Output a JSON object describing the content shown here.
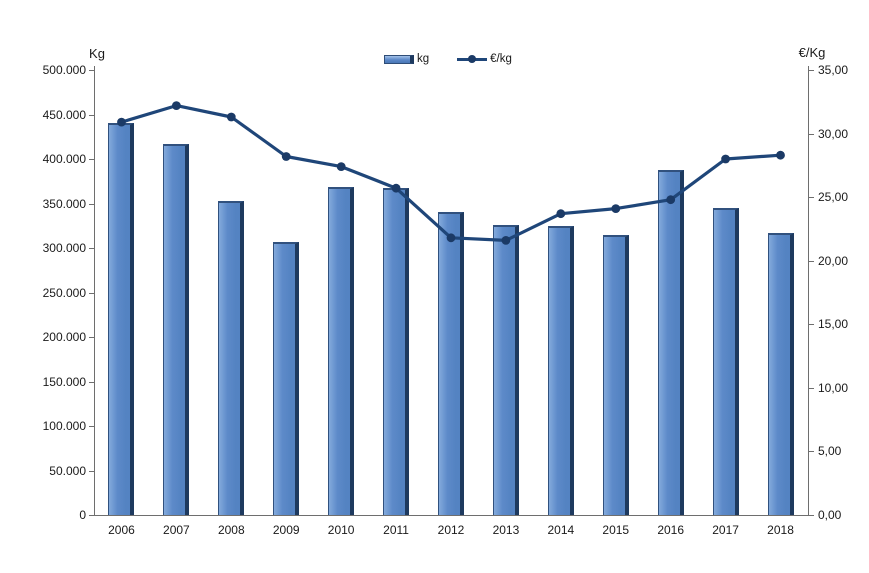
{
  "chart_data": {
    "type": "bar+line",
    "categories": [
      "2006",
      "2007",
      "2008",
      "2009",
      "2010",
      "2011",
      "2012",
      "2013",
      "2014",
      "2015",
      "2016",
      "2017",
      "2018"
    ],
    "series": [
      {
        "name": "kg",
        "type": "bar",
        "axis": "left",
        "values": [
          440000,
          417000,
          353000,
          307000,
          368000,
          367000,
          340000,
          326000,
          325000,
          315000,
          388000,
          345000,
          317000
        ]
      },
      {
        "name": "€/kg",
        "type": "line",
        "axis": "right",
        "values": [
          30.9,
          32.2,
          31.3,
          28.2,
          27.4,
          25.7,
          21.8,
          21.6,
          23.7,
          24.1,
          24.8,
          28.0,
          28.3
        ]
      }
    ],
    "left_axis": {
      "title": "Kg",
      "min": 0,
      "max": 500000,
      "step": 50000,
      "tick_labels": [
        "500.000",
        "450.000",
        "400.000",
        "350.000",
        "300.000",
        "250.000",
        "200.000",
        "150.000",
        "100.000",
        "50.000",
        "0"
      ]
    },
    "right_axis": {
      "title": "€/Kg",
      "min": 0,
      "max": 35,
      "step": 5,
      "tick_labels": [
        "35,00",
        "30,00",
        "25,00",
        "20,00",
        "15,00",
        "10,00",
        "5,00",
        "0,00"
      ]
    },
    "legend": [
      {
        "label": "kg",
        "marker": "bar-swatch"
      },
      {
        "label": "€/kg",
        "marker": "line-marker"
      }
    ],
    "grid": "off",
    "legend_position": "top-center",
    "colors": {
      "bar_fill": "#5d8ac9",
      "bar_fill_light": "#83aadc",
      "bar_shadow": "#1e3a5f",
      "bar_border": "#31517e",
      "line": "#1f4679",
      "marker": "#1b3a66",
      "axis": "#6e6e6e",
      "text": "#1a1a1a"
    }
  }
}
